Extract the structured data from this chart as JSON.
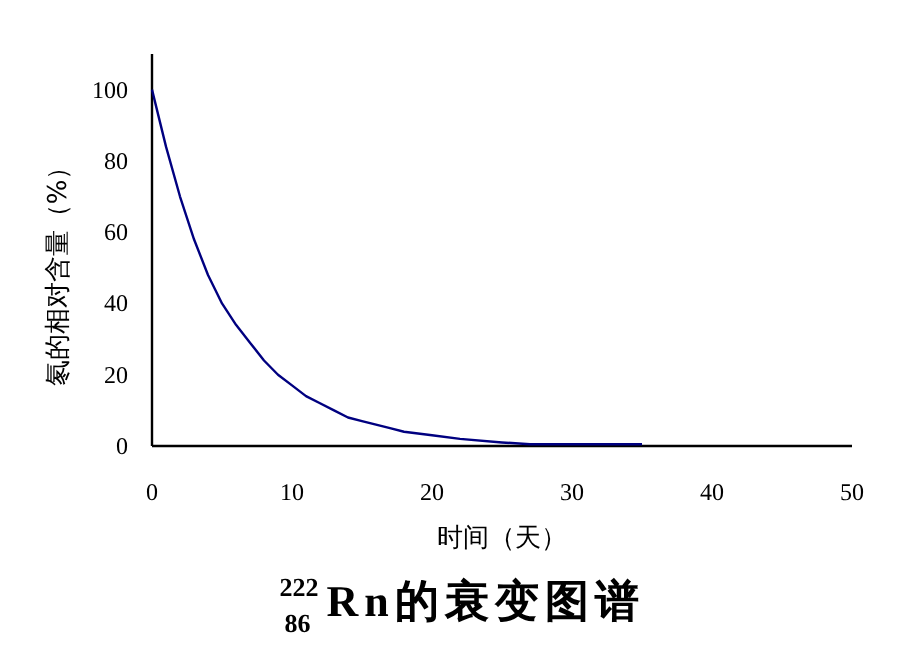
{
  "chart_data": {
    "type": "line",
    "title": "$^{222}$$_{86}$Rn的衰变图谱",
    "xlabel": "时间（天）",
    "ylabel": "氡的相对含量（%）",
    "xlim": [
      0,
      50
    ],
    "xticks": [
      0,
      10,
      20,
      30,
      40,
      50
    ],
    "ylim": [
      0,
      110
    ],
    "yticks": [
      0,
      20,
      40,
      60,
      80,
      100
    ],
    "grid": false,
    "series": [
      {
        "color": "#000080",
        "x": [
          0,
          1,
          2,
          3,
          4,
          5,
          6,
          7,
          8,
          9,
          10,
          11,
          12,
          13,
          14,
          15,
          16,
          17,
          18,
          20,
          22,
          25,
          27,
          35
        ],
        "values": [
          100,
          84,
          70,
          58,
          48,
          40,
          34,
          29,
          24,
          20,
          17,
          14,
          12,
          10,
          8,
          7,
          6,
          5,
          4,
          3,
          2,
          1,
          0.5,
          0.5
        ]
      }
    ]
  }
}
